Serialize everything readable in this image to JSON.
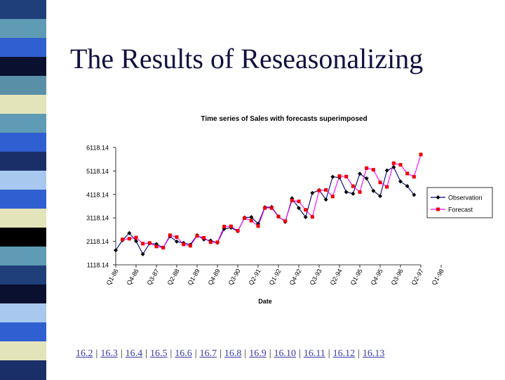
{
  "slide": {
    "title": "The Results of Reseasonalizing",
    "stripe_colors": [
      "#1f3f7a",
      "#5f9bb4",
      "#2f5fd0",
      "#0a1030",
      "#5a8fa8",
      "#e4e4ba",
      "#5f9bb4",
      "#2f5fd0",
      "#1a2f68",
      "#a9c8f0",
      "#2f5fd0",
      "#e4e4ba",
      "#000000",
      "#5f9bb4",
      "#1f3f7a",
      "#0a1030",
      "#a9c8f0",
      "#2f5fd0",
      "#e4e4ba",
      "#1a2f68"
    ]
  },
  "nav": {
    "links": [
      "16.2",
      "16.3",
      "16.4",
      "16.5",
      "16.6",
      "16.7",
      "16.8",
      "16.9",
      "16.10",
      "16.11",
      "16.12",
      "16.13"
    ],
    "separator": "|"
  },
  "chart_data": {
    "type": "line",
    "title": "Time series of Sales with forecasts superimposed",
    "xlabel": "Date",
    "ylabel": "",
    "y_ticks": [
      "6118.14",
      "5118.14",
      "4118.14",
      "3118.14",
      "2118.14",
      "1118.14"
    ],
    "ylim": [
      1118.14,
      6118.14
    ],
    "x_tick_labels": [
      "Q1-86",
      "Q4-86",
      "Q3-87",
      "Q2-88",
      "Q1-89",
      "Q4-89",
      "Q3-90",
      "Q2-91",
      "Q1-92",
      "Q4-92",
      "Q3-93",
      "Q2-94",
      "Q1-95",
      "Q4-95",
      "Q3-96",
      "Q2-97",
      "Q1-98"
    ],
    "legend_position": "right",
    "colors": {
      "observation": "#000080",
      "forecast": "#ff00ff",
      "forecast_marker": "#ee0000"
    },
    "series": [
      {
        "name": "Observation",
        "marker": "diamond",
        "values": [
          1740,
          2170,
          2470,
          2130,
          1570,
          2030,
          2000,
          1850,
          2330,
          2110,
          2050,
          1980,
          2380,
          2200,
          2150,
          2060,
          2650,
          2700,
          2550,
          3130,
          3150,
          2870,
          3570,
          3580,
          3180,
          2950,
          3950,
          3540,
          3150,
          4180,
          4300,
          3900,
          4870,
          4840,
          4220,
          4150,
          5000,
          4800,
          4270,
          4050,
          5140,
          5280,
          4670,
          4470,
          4100
        ]
      },
      {
        "name": "Forecast",
        "marker": "square",
        "values": [
          null,
          2200,
          2230,
          2280,
          2020,
          2050,
          1900,
          1850,
          2380,
          2300,
          1990,
          1930,
          2350,
          2270,
          2080,
          2080,
          2750,
          2760,
          2570,
          3110,
          3000,
          2770,
          3540,
          3540,
          3170,
          2980,
          3860,
          3820,
          3460,
          3160,
          4280,
          4310,
          4030,
          4900,
          4880,
          4470,
          4220,
          5240,
          5170,
          4630,
          4440,
          5450,
          5380,
          5010,
          4870,
          5820
        ]
      }
    ]
  }
}
